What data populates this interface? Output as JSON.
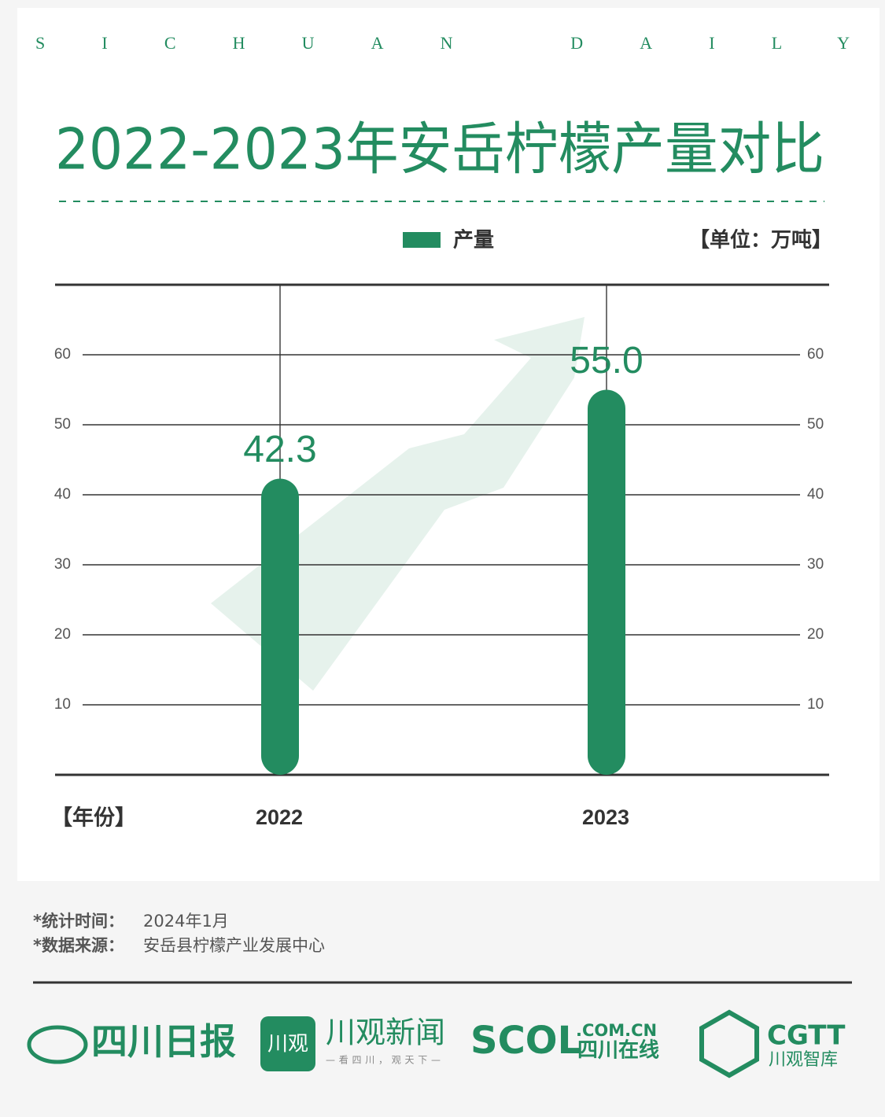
{
  "header": "SICHUAN DAILY",
  "chart_data": {
    "type": "bar",
    "title": "2022-2023年安岳柠檬产量对比",
    "categories": [
      "2022",
      "2023"
    ],
    "series": [
      {
        "name": "产量",
        "color": "#238c60",
        "values": [
          42.3,
          55.0
        ]
      }
    ],
    "value_labels": [
      "42.3",
      "55.0"
    ],
    "unit_label": "【单位：万吨】",
    "x_label": "【年份】",
    "ylim": [
      0,
      70
    ],
    "yticks": [
      10,
      20,
      30,
      40,
      50,
      60
    ],
    "grid": true
  },
  "notes": [
    {
      "label": "*统计时间：",
      "text": "2024年1月"
    },
    {
      "label": "*数据来源：",
      "text": "安岳县柠檬产业发展中心"
    }
  ],
  "logos": {
    "sichuan_daily": "四川日报",
    "chuanguan_icon": "川观",
    "chuanguan": "川观新闻",
    "chuanguan_slogan": "—看四川，观天下—",
    "scol": "SCOL",
    "scol_domain": ".COM.CN",
    "scol_name": "四川在线",
    "cgtt": "CGTT",
    "cgtt_name": "川观智库"
  }
}
